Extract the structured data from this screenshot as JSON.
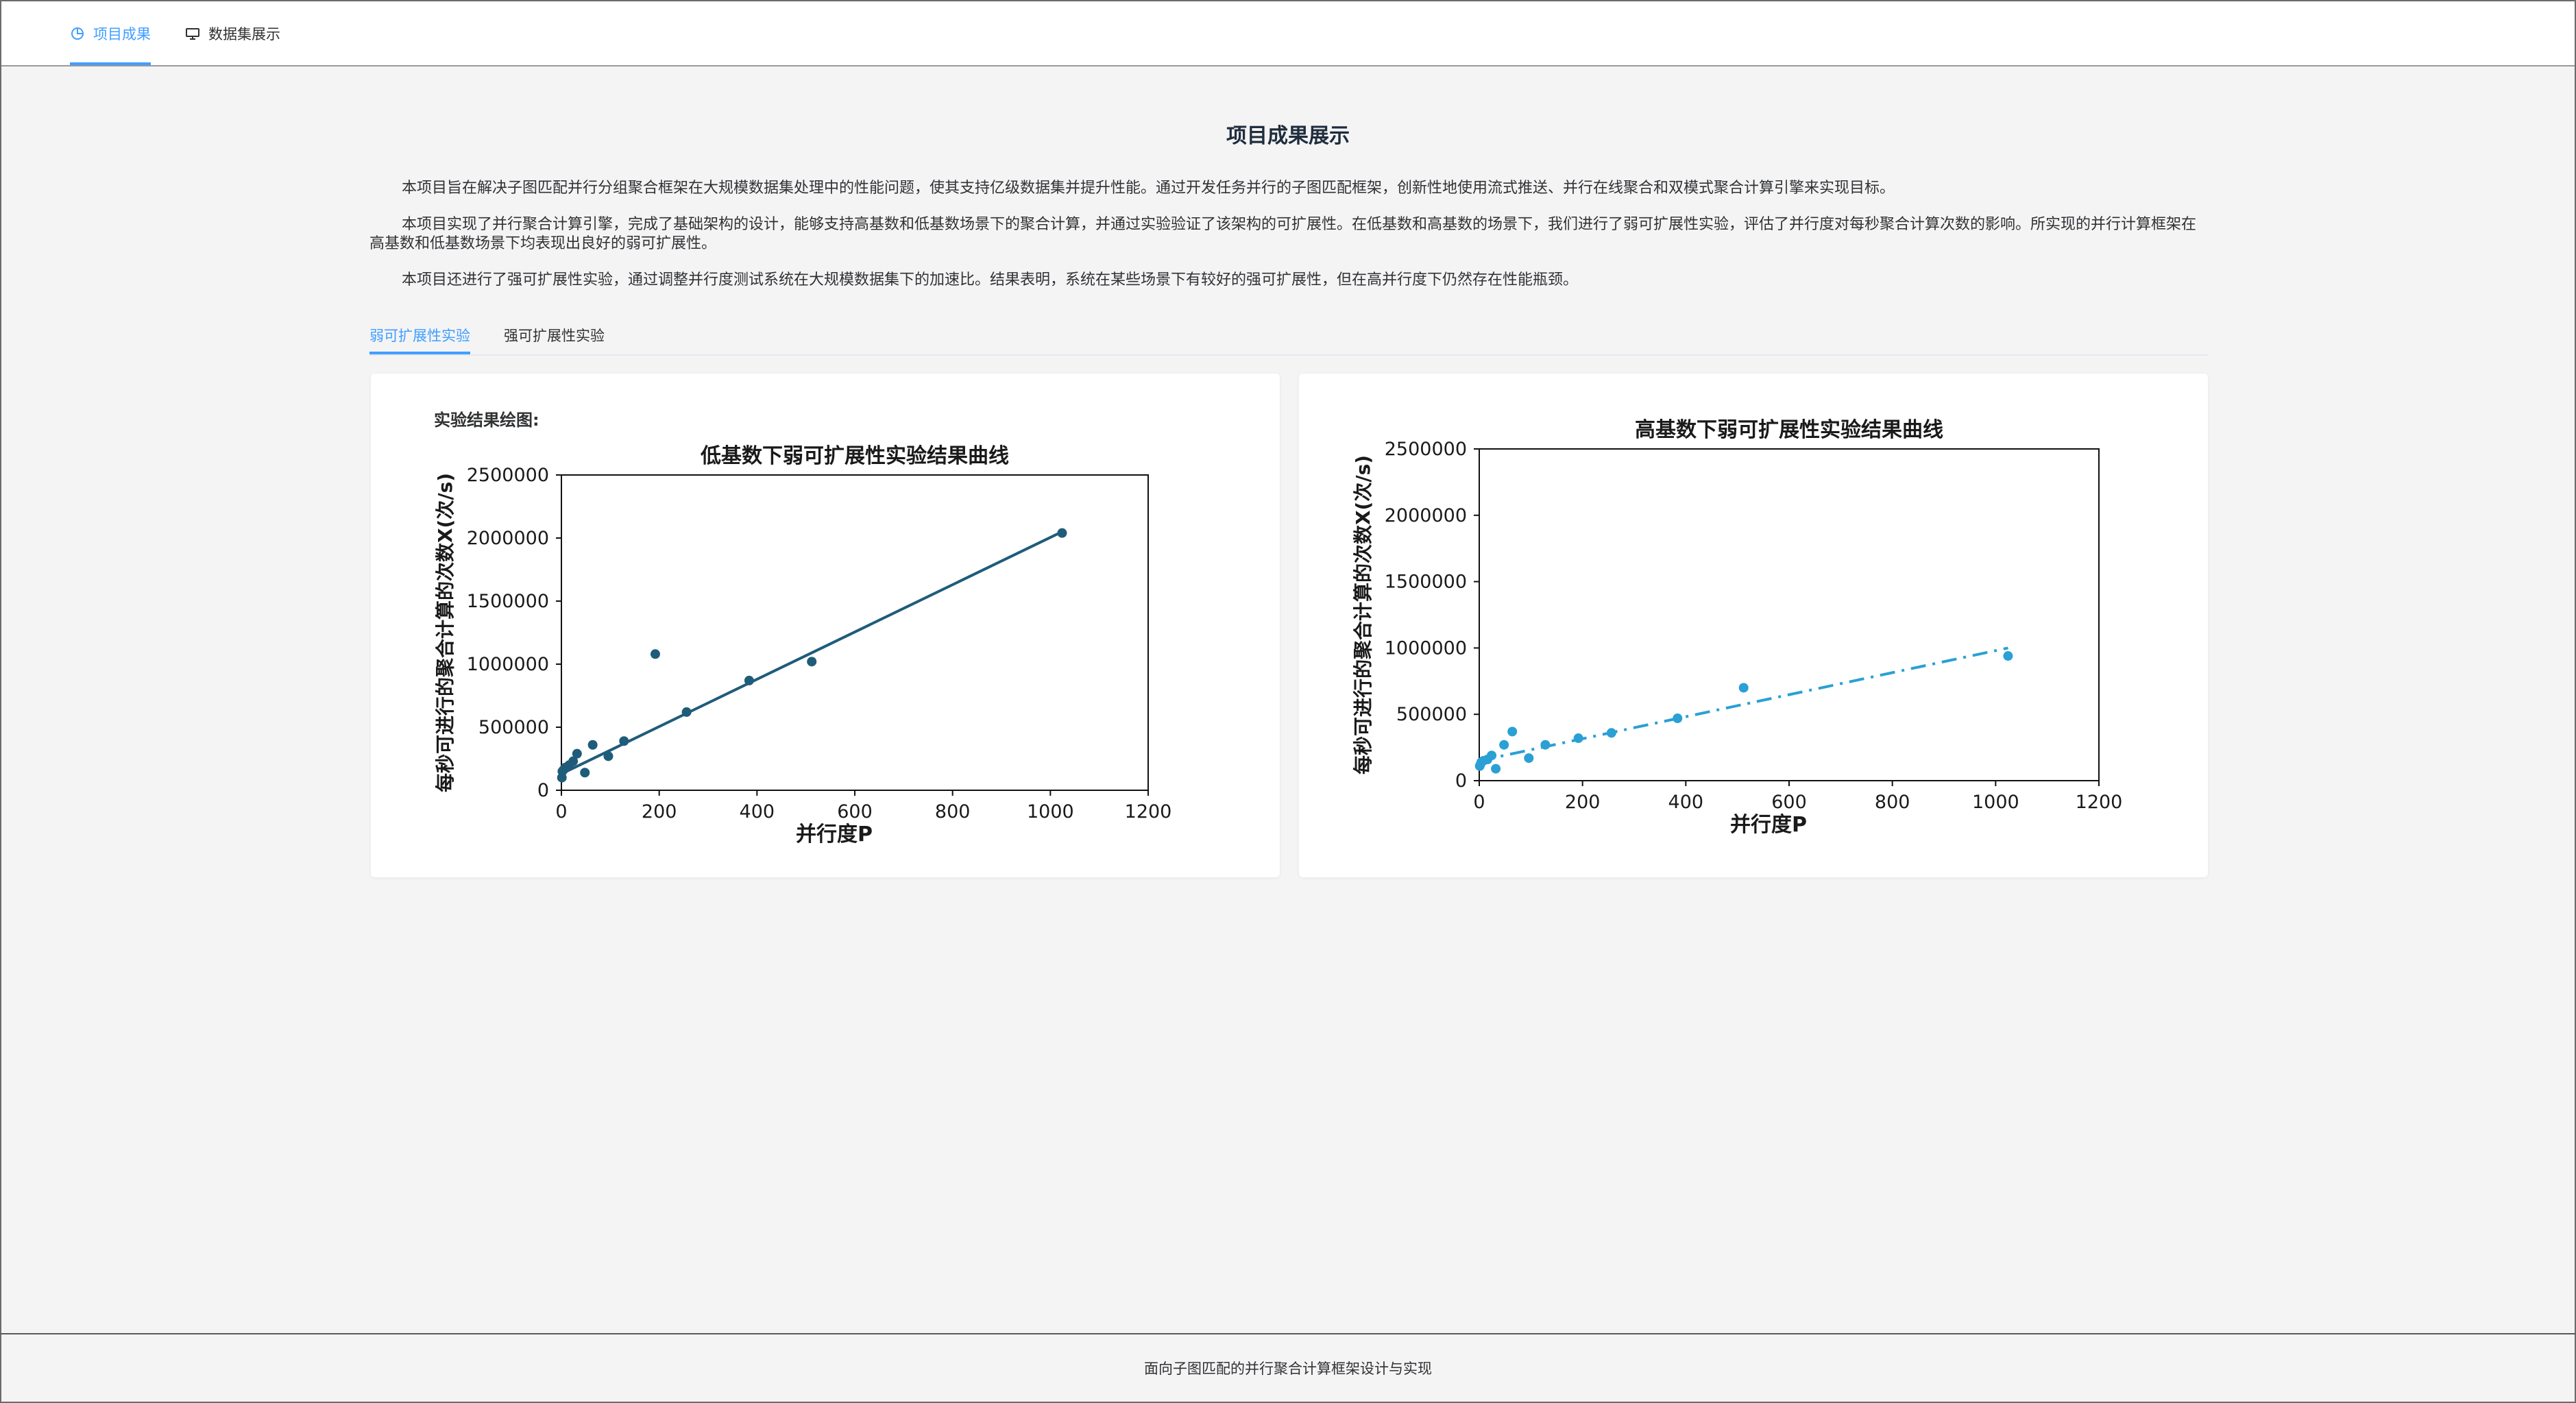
{
  "nav": {
    "items": [
      {
        "label": "项目成果",
        "icon": "pie-chart-icon",
        "active": true
      },
      {
        "label": "数据集展示",
        "icon": "monitor-icon",
        "active": false
      }
    ]
  },
  "page": {
    "title": "项目成果展示",
    "paragraphs": [
      "本项目旨在解决子图匹配并行分组聚合框架在大规模数据集处理中的性能问题，使其支持亿级数据集并提升性能。通过开发任务并行的子图匹配框架，创新性地使用流式推送、并行在线聚合和双模式聚合计算引擎来实现目标。",
      "本项目实现了并行聚合计算引擎，完成了基础架构的设计，能够支持高基数和低基数场景下的聚合计算，并通过实验验证了该架构的可扩展性。在低基数和高基数的场景下，我们进行了弱可扩展性实验，评估了并行度对每秒聚合计算次数的影响。所实现的并行计算框架在高基数和低基数场景下均表现出良好的弱可扩展性。",
      "本项目还进行了强可扩展性实验，通过调整并行度测试系统在大规模数据集下的加速比。结果表明，系统在某些场景下有较好的强可扩展性，但在高并行度下仍然存在性能瓶颈。"
    ]
  },
  "tabs": [
    {
      "label": "弱可扩展性实验",
      "active": true
    },
    {
      "label": "强可扩展性实验",
      "active": false
    }
  ],
  "cards": {
    "left_label": "实验结果绘图:"
  },
  "chart_data": [
    {
      "type": "scatter",
      "title": "低基数下弱可扩展性实验结果曲线",
      "xlabel": "并行度P",
      "ylabel": "每秒可进行的聚合计算的次数X(次/s)",
      "xlim": [
        0,
        1200
      ],
      "ylim": [
        0,
        2500000
      ],
      "xticks": [
        "0",
        "200",
        "400",
        "600",
        "800",
        "1000",
        "1200"
      ],
      "yticks": [
        "0",
        "500000",
        "1000000",
        "1500000",
        "2000000",
        "2500000"
      ],
      "points": {
        "x": [
          1,
          2,
          4,
          8,
          16,
          24,
          32,
          48,
          64,
          96,
          128,
          192,
          256,
          384,
          512,
          1024
        ],
        "y": [
          100000,
          150000,
          160000,
          180000,
          200000,
          230000,
          290000,
          140000,
          360000,
          270000,
          390000,
          1080000,
          620000,
          870000,
          1020000,
          2040000
        ]
      },
      "fit": {
        "x": [
          0,
          1024
        ],
        "y": [
          130000,
          2050000
        ],
        "style": "solid"
      },
      "color": "#1f5c7a",
      "grid": false
    },
    {
      "type": "scatter",
      "title": "高基数下弱可扩展性实验结果曲线",
      "xlabel": "并行度P",
      "ylabel": "每秒可进行的聚合计算的次数X(次/s)",
      "xlim": [
        0,
        1200
      ],
      "ylim": [
        0,
        2500000
      ],
      "xticks": [
        "0",
        "200",
        "400",
        "600",
        "800",
        "1000",
        "1200"
      ],
      "yticks": [
        "0",
        "500000",
        "1000000",
        "1500000",
        "2000000",
        "2500000"
      ],
      "points": {
        "x": [
          1,
          2,
          4,
          8,
          16,
          24,
          32,
          48,
          64,
          96,
          128,
          192,
          256,
          384,
          512,
          1024
        ],
        "y": [
          110000,
          120000,
          140000,
          150000,
          160000,
          190000,
          90000,
          270000,
          370000,
          170000,
          270000,
          320000,
          360000,
          470000,
          700000,
          940000
        ]
      },
      "fit": {
        "x": [
          0,
          1024
        ],
        "y": [
          150000,
          1000000
        ],
        "style": "dashdot"
      },
      "color": "#2aa0d4",
      "grid": false
    }
  ],
  "footer": {
    "text": "面向子图匹配的并行聚合计算框架设计与实现"
  }
}
